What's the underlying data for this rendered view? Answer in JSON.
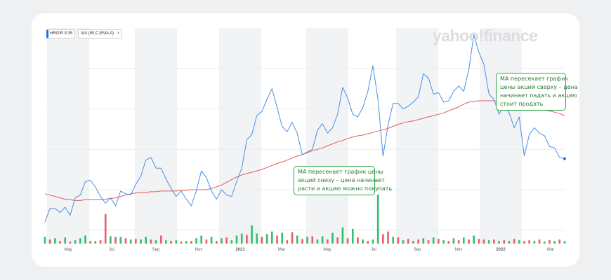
{
  "legend": {
    "ticker": "HROW",
    "ticker_price": "9.35",
    "indicator": "MA (50,C,EMA,0)",
    "close_symbol": "×"
  },
  "watermark": "yahoo!finance",
  "annotations": [
    {
      "id": "sell",
      "lines": [
        "MA пересекает график",
        "цены акций сверху – цена",
        "начинает падать и акцию",
        "стоит продать"
      ]
    },
    {
      "id": "buy",
      "lines": [
        "МА пересекает график цены",
        "акций снизу – цена начинает",
        "расти и акцию можно покупать"
      ]
    }
  ],
  "colors": {
    "price": "#4a90e2",
    "ma": "#e35b5b",
    "volume_up": "#2fbf71",
    "volume_down": "#ef5a67",
    "annotation": "#27a844",
    "band": "#f2f3f5"
  },
  "chart_data": {
    "type": "line",
    "x_tick_labels": [
      "May",
      "Jul",
      "Sep",
      "Nov",
      "2021",
      "Mar",
      "May",
      "Jul",
      "Sep",
      "Nov",
      "2022",
      "Mar"
    ],
    "series": [
      {
        "key": "price",
        "values": [
          4.6,
          5.6,
          5.6,
          5.3,
          5.7,
          5.1,
          6.4,
          6.6,
          7.6,
          7.7,
          7.2,
          6.5,
          6.0,
          6.4,
          5.8,
          6.9,
          6.7,
          6.6,
          7.4,
          8.0,
          9.2,
          9.4,
          8.6,
          8.6,
          7.8,
          7.1,
          6.5,
          6.9,
          6.3,
          5.8,
          6.9,
          8.4,
          7.9,
          6.9,
          6.3,
          7.0,
          6.6,
          6.5,
          7.6,
          8.6,
          10.7,
          11.1,
          12.5,
          12.8,
          13.7,
          14.5,
          13.1,
          11.7,
          11.3,
          12.0,
          11.2,
          9.6,
          9.8,
          10.0,
          11.4,
          11.9,
          11.2,
          11.6,
          12.6,
          14.6,
          13.8,
          12.6,
          12.4,
          13.1,
          14.3,
          16.2,
          13.7,
          9.5,
          11.8,
          13.4,
          13.4,
          13.0,
          13.2,
          13.5,
          13.9,
          15.6,
          15.3,
          14.1,
          14.2,
          13.5,
          13.6,
          14.3,
          14.7,
          14.3,
          15.9,
          18.5,
          17.2,
          16.3,
          14.1,
          13.7,
          12.6,
          13.3,
          12.7,
          11.6,
          12.4,
          9.5,
          11.1,
          11.6,
          11.2,
          11.0,
          10.2,
          10.1,
          9.4,
          9.3
        ]
      },
      {
        "key": "ma",
        "values": [
          6.7,
          6.6,
          6.5,
          6.4,
          6.3,
          6.25,
          6.2,
          6.2,
          6.25,
          6.25,
          6.25,
          6.25,
          6.3,
          6.35,
          6.4,
          6.5,
          6.6,
          6.7,
          6.75,
          6.8,
          6.8,
          6.85,
          6.85,
          6.9,
          6.9,
          6.9,
          6.9,
          6.95,
          6.95,
          7.0,
          7.0,
          7.0,
          7.0,
          7.1,
          7.2,
          7.35,
          7.55,
          7.75,
          7.95,
          8.1,
          8.2,
          8.3,
          8.4,
          8.5,
          8.65,
          8.8,
          8.95,
          9.05,
          9.2,
          9.35,
          9.5,
          9.6,
          9.75,
          9.9,
          10.0,
          10.1,
          10.25,
          10.4,
          10.55,
          10.65,
          10.8,
          10.9,
          11.0,
          11.05,
          11.15,
          11.25,
          11.35,
          11.45,
          11.55,
          11.7,
          11.85,
          11.95,
          12.05,
          12.1,
          12.2,
          12.3,
          12.4,
          12.5,
          12.6,
          12.7,
          12.85,
          13.0,
          13.15,
          13.35,
          13.5,
          13.55,
          13.6,
          13.6,
          13.6,
          13.6,
          13.55,
          13.5,
          13.45,
          13.4,
          13.3,
          13.2,
          13.1,
          13.05,
          12.95,
          12.9,
          12.85,
          12.75,
          12.65,
          12.5
        ]
      }
    ],
    "volume": [
      {
        "v": 10,
        "up": true
      },
      {
        "v": 6,
        "up": false
      },
      {
        "v": 8,
        "up": true
      },
      {
        "v": 4,
        "up": false
      },
      {
        "v": 9,
        "up": true
      },
      {
        "v": 3,
        "up": false
      },
      {
        "v": 5,
        "up": true
      },
      {
        "v": 8,
        "up": true
      },
      {
        "v": 12,
        "up": true
      },
      {
        "v": 4,
        "up": false
      },
      {
        "v": 4,
        "up": true
      },
      {
        "v": 5,
        "up": false
      },
      {
        "v": 44,
        "up": false
      },
      {
        "v": 11,
        "up": true
      },
      {
        "v": 10,
        "up": false
      },
      {
        "v": 10,
        "up": true
      },
      {
        "v": 8,
        "up": false
      },
      {
        "v": 6,
        "up": true
      },
      {
        "v": 7,
        "up": false
      },
      {
        "v": 6,
        "up": true
      },
      {
        "v": 10,
        "up": true
      },
      {
        "v": 6,
        "up": false
      },
      {
        "v": 5,
        "up": true
      },
      {
        "v": 12,
        "up": false
      },
      {
        "v": 5,
        "up": true
      },
      {
        "v": 4,
        "up": false
      },
      {
        "v": 5,
        "up": true
      },
      {
        "v": 3,
        "up": false
      },
      {
        "v": 4,
        "up": true
      },
      {
        "v": 4,
        "up": false
      },
      {
        "v": 8,
        "up": true
      },
      {
        "v": 12,
        "up": true
      },
      {
        "v": 6,
        "up": false
      },
      {
        "v": 10,
        "up": true
      },
      {
        "v": 4,
        "up": false
      },
      {
        "v": 8,
        "up": true
      },
      {
        "v": 9,
        "up": false
      },
      {
        "v": 5,
        "up": true
      },
      {
        "v": 12,
        "up": true
      },
      {
        "v": 15,
        "up": true
      },
      {
        "v": 13,
        "up": false
      },
      {
        "v": 27,
        "up": true
      },
      {
        "v": 15,
        "up": true
      },
      {
        "v": 10,
        "up": false
      },
      {
        "v": 14,
        "up": true
      },
      {
        "v": 18,
        "up": true
      },
      {
        "v": 12,
        "up": false
      },
      {
        "v": 16,
        "up": true
      },
      {
        "v": 5,
        "up": false
      },
      {
        "v": 17,
        "up": false
      },
      {
        "v": 12,
        "up": true
      },
      {
        "v": 7,
        "up": false
      },
      {
        "v": 10,
        "up": true
      },
      {
        "v": 11,
        "up": false
      },
      {
        "v": 6,
        "up": true
      },
      {
        "v": 11,
        "up": true
      },
      {
        "v": 6,
        "up": false
      },
      {
        "v": 16,
        "up": true
      },
      {
        "v": 9,
        "up": false
      },
      {
        "v": 24,
        "up": true
      },
      {
        "v": 8,
        "up": false
      },
      {
        "v": 22,
        "up": true
      },
      {
        "v": 9,
        "up": false
      },
      {
        "v": 6,
        "up": true
      },
      {
        "v": 4,
        "up": false
      },
      {
        "v": 6,
        "up": true
      },
      {
        "v": 73,
        "up": true
      },
      {
        "v": 14,
        "up": false
      },
      {
        "v": 18,
        "up": false
      },
      {
        "v": 10,
        "up": true
      },
      {
        "v": 9,
        "up": false
      },
      {
        "v": 5,
        "up": true
      },
      {
        "v": 7,
        "up": false
      },
      {
        "v": 4,
        "up": true
      },
      {
        "v": 6,
        "up": false
      },
      {
        "v": 8,
        "up": true
      },
      {
        "v": 5,
        "up": false
      },
      {
        "v": 9,
        "up": true
      },
      {
        "v": 7,
        "up": false
      },
      {
        "v": 5,
        "up": true
      },
      {
        "v": 4,
        "up": false
      },
      {
        "v": 8,
        "up": true
      },
      {
        "v": 5,
        "up": false
      },
      {
        "v": 9,
        "up": true
      },
      {
        "v": 6,
        "up": false
      },
      {
        "v": 12,
        "up": true
      },
      {
        "v": 7,
        "up": false
      },
      {
        "v": 6,
        "up": false
      },
      {
        "v": 5,
        "up": true
      },
      {
        "v": 6,
        "up": false
      },
      {
        "v": 4,
        "up": true
      },
      {
        "v": 5,
        "up": false
      },
      {
        "v": 4,
        "up": true
      },
      {
        "v": 7,
        "up": false
      },
      {
        "v": 5,
        "up": true
      },
      {
        "v": 4,
        "up": false
      },
      {
        "v": 5,
        "up": false
      },
      {
        "v": 4,
        "up": true
      },
      {
        "v": 6,
        "up": false
      },
      {
        "v": 3,
        "up": true
      },
      {
        "v": 5,
        "up": false
      },
      {
        "v": 4,
        "up": true
      },
      {
        "v": 6,
        "up": false
      },
      {
        "v": 4,
        "up": true
      }
    ],
    "ylim": [
      3,
      19
    ],
    "volume_max": 75,
    "grid": "horizontal",
    "legend": "top-left"
  }
}
